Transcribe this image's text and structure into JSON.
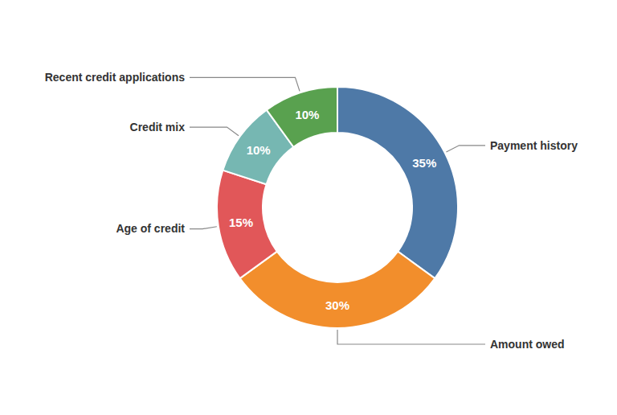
{
  "chart_data": {
    "type": "donut",
    "categories": [
      "Payment history",
      "Amount owed",
      "Age of credit",
      "Credit mix",
      "Recent credit applications"
    ],
    "values": [
      35,
      30,
      15,
      10,
      10
    ],
    "value_labels": [
      "35%",
      "30%",
      "15%",
      "10%",
      "10%"
    ],
    "data_labels": true
  }
}
